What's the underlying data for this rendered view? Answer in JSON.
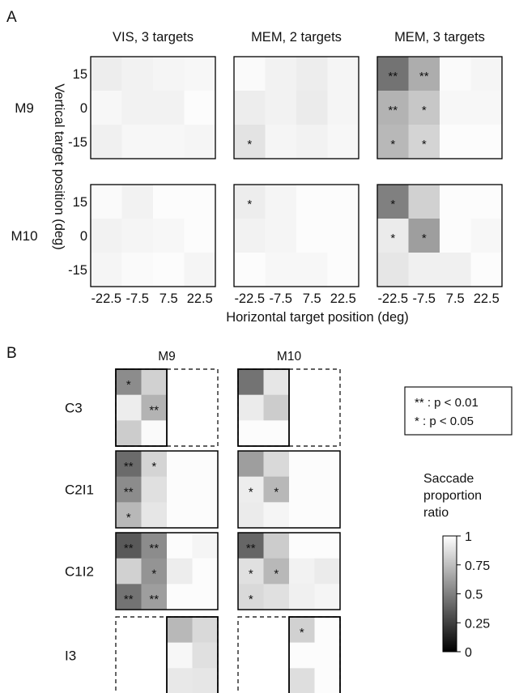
{
  "chart_data": [
    {
      "type": "heatmap",
      "panel": "A",
      "xlabel": "Horizontal target position (deg)",
      "ylabel": "Vertical target position (deg)",
      "x_ticks": [
        "-22.5",
        "-7.5",
        "7.5",
        "22.5"
      ],
      "y_ticks": [
        "15",
        "0",
        "-15"
      ],
      "columns": [
        "VIS, 3 targets",
        "MEM, 2 targets",
        "MEM, 3 targets"
      ],
      "rows": [
        "M9",
        "M10"
      ],
      "colorbar": {
        "label": "Saccade proportion ratio",
        "ticks": [
          "1",
          "0.75",
          "0.5",
          "0.25",
          "0"
        ],
        "range": [
          0,
          1
        ]
      },
      "maps": [
        {
          "row": "M9",
          "column": "VIS, 3 targets",
          "values": [
            [
              0.93,
              0.95,
              0.96,
              0.97
            ],
            [
              0.97,
              0.95,
              0.95,
              0.99
            ],
            [
              0.94,
              0.97,
              0.97,
              0.96
            ]
          ],
          "marks": [
            [
              "",
              "",
              "",
              ""
            ],
            [
              "",
              "",
              "",
              ""
            ],
            [
              "",
              "",
              "",
              ""
            ]
          ]
        },
        {
          "row": "M9",
          "column": "MEM, 2 targets",
          "values": [
            [
              0.98,
              0.95,
              0.93,
              0.96
            ],
            [
              0.93,
              0.95,
              0.92,
              0.96
            ],
            [
              0.89,
              0.96,
              0.95,
              0.97
            ]
          ],
          "marks": [
            [
              "",
              "",
              "",
              ""
            ],
            [
              "",
              "",
              "",
              ""
            ],
            [
              "*",
              "",
              "",
              ""
            ]
          ]
        },
        {
          "row": "M9",
          "column": "MEM, 3 targets",
          "values": [
            [
              0.45,
              0.68,
              0.98,
              0.96
            ],
            [
              0.7,
              0.78,
              0.97,
              0.97
            ],
            [
              0.72,
              0.83,
              0.99,
              0.99
            ]
          ],
          "marks": [
            [
              "**",
              "**",
              "",
              ""
            ],
            [
              "**",
              "*",
              "",
              ""
            ],
            [
              "*",
              "*",
              "",
              ""
            ]
          ]
        },
        {
          "row": "M10",
          "column": "VIS, 3 targets",
          "values": [
            [
              0.98,
              0.95,
              0.99,
              0.99
            ],
            [
              0.95,
              0.96,
              0.97,
              0.99
            ],
            [
              0.96,
              0.98,
              0.99,
              0.96
            ]
          ],
          "marks": [
            [
              "",
              "",
              "",
              ""
            ],
            [
              "",
              "",
              "",
              ""
            ],
            [
              "",
              "",
              "",
              ""
            ]
          ]
        },
        {
          "row": "M10",
          "column": "MEM, 2 targets",
          "values": [
            [
              0.93,
              0.96,
              0.99,
              0.99
            ],
            [
              0.95,
              0.96,
              0.99,
              0.99
            ],
            [
              0.99,
              0.97,
              0.97,
              0.99
            ]
          ],
          "marks": [
            [
              "*",
              "",
              "",
              ""
            ],
            [
              "",
              "",
              "",
              ""
            ],
            [
              "",
              "",
              "",
              ""
            ]
          ]
        },
        {
          "row": "M10",
          "column": "MEM, 3 targets",
          "values": [
            [
              0.5,
              0.82,
              0.99,
              0.99
            ],
            [
              0.92,
              0.62,
              0.99,
              0.97
            ],
            [
              0.9,
              0.94,
              0.94,
              0.99
            ]
          ],
          "marks": [
            [
              "*",
              "",
              "",
              ""
            ],
            [
              "*",
              "*",
              "",
              ""
            ],
            [
              "",
              "",
              "",
              ""
            ]
          ]
        }
      ]
    },
    {
      "type": "heatmap",
      "panel": "B",
      "columns": [
        "M9",
        "M10"
      ],
      "rows": [
        "C3",
        "C2I1",
        "C1I2",
        "I3"
      ],
      "legend": [
        "** : p < 0.01",
        "* : p < 0.05"
      ],
      "colorbar": {
        "label": "Saccade proportion ratio",
        "ticks": [
          "1",
          "0.75",
          "0.5",
          "0.25",
          "0"
        ],
        "range": [
          0,
          1
        ]
      },
      "maps": [
        {
          "row": "C3",
          "column": "M9",
          "values": [
            [
              0.55,
              0.82,
              null,
              null
            ],
            [
              0.93,
              0.7,
              null,
              null
            ],
            [
              0.8,
              0.98,
              null,
              null
            ]
          ],
          "marks": [
            [
              "*",
              "",
              "",
              ""
            ],
            [
              "",
              "**",
              "",
              ""
            ],
            [
              "",
              "",
              "",
              ""
            ]
          ]
        },
        {
          "row": "C3",
          "column": "M10",
          "values": [
            [
              0.45,
              0.9,
              null,
              null
            ],
            [
              0.92,
              0.8,
              null,
              null
            ],
            [
              0.99,
              0.99,
              null,
              null
            ]
          ],
          "marks": [
            [
              "",
              "",
              "",
              ""
            ],
            [
              "",
              "",
              "",
              ""
            ],
            [
              "",
              "",
              "",
              ""
            ]
          ]
        },
        {
          "row": "C2I1",
          "column": "M9",
          "values": [
            [
              0.42,
              0.83,
              0.99,
              0.99
            ],
            [
              0.55,
              0.88,
              0.99,
              0.99
            ],
            [
              0.72,
              0.9,
              0.99,
              0.99
            ]
          ],
          "marks": [
            [
              "**",
              "*",
              "",
              ""
            ],
            [
              "**",
              "",
              "",
              ""
            ],
            [
              "*",
              "",
              "",
              ""
            ]
          ]
        },
        {
          "row": "C2I1",
          "column": "M10",
          "values": [
            [
              0.62,
              0.85,
              0.99,
              0.99
            ],
            [
              0.93,
              0.72,
              0.99,
              0.99
            ],
            [
              0.92,
              0.96,
              0.99,
              0.99
            ]
          ],
          "marks": [
            [
              "",
              "",
              "",
              ""
            ],
            [
              "*",
              "*",
              "",
              ""
            ],
            [
              "",
              "",
              "",
              ""
            ]
          ]
        },
        {
          "row": "C1I2",
          "column": "M9",
          "values": [
            [
              0.35,
              0.55,
              0.99,
              0.96
            ],
            [
              0.82,
              0.58,
              0.93,
              0.99
            ],
            [
              0.45,
              0.62,
              0.99,
              0.99
            ]
          ],
          "marks": [
            [
              "**",
              "**",
              "",
              ""
            ],
            [
              "",
              "*",
              "",
              ""
            ],
            [
              "**",
              "**",
              "",
              ""
            ]
          ]
        },
        {
          "row": "C1I2",
          "column": "M10",
          "values": [
            [
              0.4,
              0.8,
              0.99,
              0.99
            ],
            [
              0.88,
              0.72,
              0.95,
              0.92
            ],
            [
              0.85,
              0.88,
              0.94,
              0.96
            ]
          ],
          "marks": [
            [
              "**",
              "",
              "",
              ""
            ],
            [
              "*",
              "*",
              "",
              ""
            ],
            [
              "*",
              "",
              "",
              ""
            ]
          ]
        },
        {
          "row": "I3",
          "column": "M9",
          "values": [
            [
              null,
              null,
              0.72,
              0.85
            ],
            [
              null,
              null,
              0.97,
              0.88
            ],
            [
              null,
              null,
              0.91,
              0.9
            ]
          ],
          "marks": [
            [
              "",
              "",
              "",
              ""
            ],
            [
              "",
              "",
              "",
              ""
            ],
            [
              "",
              "",
              "",
              ""
            ]
          ]
        },
        {
          "row": "I3",
          "column": "M10",
          "values": [
            [
              null,
              null,
              0.82,
              0.99
            ],
            [
              null,
              null,
              0.99,
              0.99
            ],
            [
              null,
              null,
              0.87,
              0.99
            ]
          ],
          "marks": [
            [
              "",
              "",
              "*",
              ""
            ],
            [
              "",
              "",
              "",
              ""
            ],
            [
              "",
              "",
              "",
              ""
            ]
          ]
        }
      ]
    }
  ],
  "labels": {
    "panel_a": "A",
    "panel_b": "B",
    "colorbar_title": [
      "Saccade",
      "proportion",
      "ratio"
    ]
  }
}
